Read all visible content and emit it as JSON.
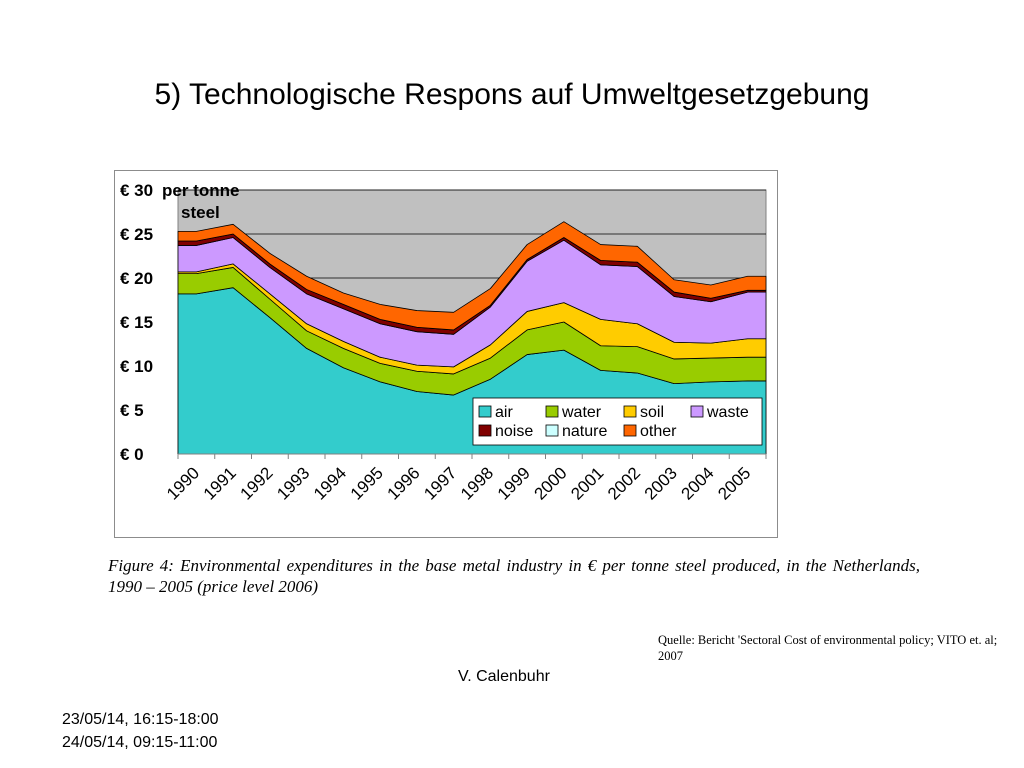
{
  "slide": {
    "title": "5) Technologische Respons auf Umweltgesetzgebung",
    "caption": "Figure 4: Environmental expenditures in the base metal industry in € per tonne steel produced, in the Netherlands, 1990 – 2005 (price level 2006)",
    "source": "Quelle: Bericht 'Sectoral Cost of environmental policy; VITO et. al; 2007",
    "author": "V. Calenbuhr",
    "dates": [
      "23/05/14, 16:15-18:00",
      "24/05/14, 09:15-11:00"
    ]
  },
  "chart_data": {
    "type": "area",
    "stacked": true,
    "ylabel": "per tonne steel",
    "ylim": [
      0,
      30
    ],
    "yticks": [
      "€ 0",
      "€ 5",
      "€ 10",
      "€ 15",
      "€ 20",
      "€ 25",
      "€ 30"
    ],
    "yticks_values": [
      0,
      5,
      10,
      15,
      20,
      25,
      30
    ],
    "grid": true,
    "legend": "bottom-right",
    "categories": [
      "1990",
      "1991",
      "1992",
      "1993",
      "1994",
      "1995",
      "1996",
      "1997",
      "1998",
      "1999",
      "2000",
      "2001",
      "2002",
      "2003",
      "2004",
      "2005"
    ],
    "series": [
      {
        "name": "air",
        "color": "#33cccc",
        "values": [
          18.2,
          18.9,
          15.5,
          12.0,
          9.8,
          8.2,
          7.1,
          6.7,
          8.5,
          11.3,
          11.8,
          9.5,
          9.2,
          8.0,
          8.2,
          8.3
        ]
      },
      {
        "name": "water",
        "color": "#99cc00",
        "values": [
          2.3,
          2.3,
          2.1,
          2.0,
          2.2,
          2.1,
          2.3,
          2.4,
          2.4,
          2.8,
          3.2,
          2.8,
          3.0,
          2.8,
          2.7,
          2.7
        ]
      },
      {
        "name": "soil",
        "color": "#ffcc00",
        "values": [
          0.2,
          0.4,
          0.6,
          0.8,
          0.8,
          0.7,
          0.7,
          0.8,
          1.5,
          2.1,
          2.2,
          3.0,
          2.6,
          1.9,
          1.7,
          2.1
        ]
      },
      {
        "name": "waste",
        "color": "#cc99ff",
        "values": [
          3.0,
          3.0,
          3.0,
          3.4,
          3.7,
          3.8,
          3.8,
          3.7,
          4.3,
          5.7,
          7.1,
          6.2,
          6.5,
          5.2,
          4.7,
          5.3
        ]
      },
      {
        "name": "noise",
        "color": "#800000",
        "values": [
          0.5,
          0.4,
          0.4,
          0.5,
          0.5,
          0.5,
          0.5,
          0.5,
          0.2,
          0.2,
          0.3,
          0.5,
          0.5,
          0.5,
          0.4,
          0.2
        ]
      },
      {
        "name": "nature",
        "color": "#ccffff",
        "values": [
          0.0,
          0.0,
          0.0,
          0.0,
          0.0,
          0.0,
          0.0,
          0.0,
          0.0,
          0.0,
          0.0,
          0.0,
          0.0,
          0.0,
          0.0,
          0.0
        ]
      },
      {
        "name": "other",
        "color": "#ff6600",
        "values": [
          1.1,
          1.1,
          1.2,
          1.5,
          1.3,
          1.7,
          1.9,
          2.0,
          1.9,
          1.7,
          1.8,
          1.8,
          1.8,
          1.4,
          1.5,
          1.6
        ]
      }
    ],
    "plot_background": "#c0c0c0"
  }
}
